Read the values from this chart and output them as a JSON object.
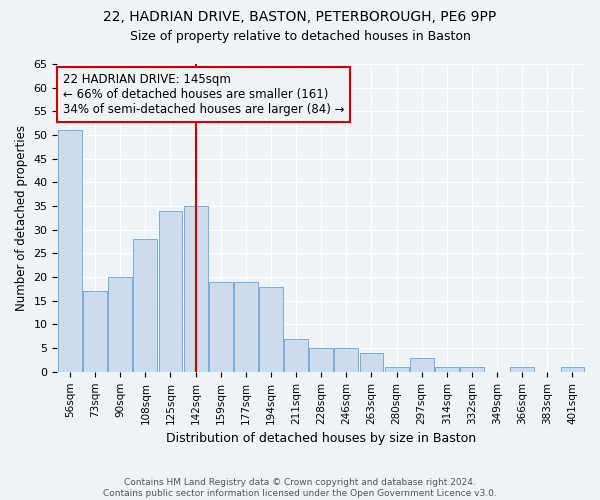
{
  "title1": "22, HADRIAN DRIVE, BASTON, PETERBOROUGH, PE6 9PP",
  "title2": "Size of property relative to detached houses in Baston",
  "xlabel": "Distribution of detached houses by size in Baston",
  "ylabel": "Number of detached properties",
  "categories": [
    "56sqm",
    "73sqm",
    "90sqm",
    "108sqm",
    "125sqm",
    "142sqm",
    "159sqm",
    "177sqm",
    "194sqm",
    "211sqm",
    "228sqm",
    "246sqm",
    "263sqm",
    "280sqm",
    "297sqm",
    "314sqm",
    "332sqm",
    "349sqm",
    "366sqm",
    "383sqm",
    "401sqm"
  ],
  "values": [
    51,
    17,
    20,
    28,
    34,
    35,
    19,
    19,
    18,
    7,
    5,
    5,
    4,
    1,
    3,
    1,
    1,
    0,
    1,
    0,
    1
  ],
  "bar_color": "#ccdcec",
  "bar_edge_color": "#7aaed4",
  "vline_x_index": 5,
  "vline_color": "#cc0000",
  "annotation_text": "22 HADRIAN DRIVE: 145sqm\n← 66% of detached houses are smaller (161)\n34% of semi-detached houses are larger (84) →",
  "annotation_box_color": "#cc0000",
  "ylim": [
    0,
    65
  ],
  "yticks": [
    0,
    5,
    10,
    15,
    20,
    25,
    30,
    35,
    40,
    45,
    50,
    55,
    60,
    65
  ],
  "footer_text": "Contains HM Land Registry data © Crown copyright and database right 2024.\nContains public sector information licensed under the Open Government Licence v3.0.",
  "bg_color": "#eef3f8",
  "grid_color": "#ffffff",
  "title1_fontsize": 10,
  "title2_fontsize": 9,
  "title1_bold": false
}
